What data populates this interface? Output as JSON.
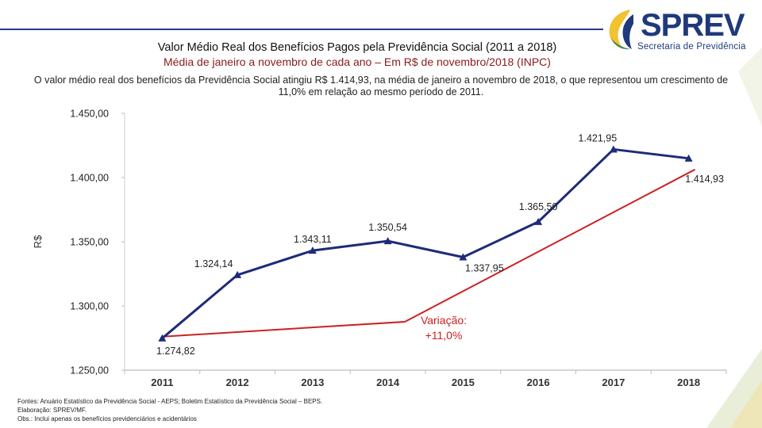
{
  "brand": {
    "name": "SPREV",
    "subtitle": "Secretaria de Previdência",
    "colors": {
      "navy": "#1f3a7a",
      "yellow": "#f2c230",
      "green": "#2e8b57"
    }
  },
  "header": {
    "title": "Valor Médio Real dos Benefícios Pagos pela Previdência Social (2011 a 2018)",
    "subtitle": "Média de janeiro a novembro de cada ano – Em R$ de novembro/2018 (INPC)",
    "description": "O valor médio real dos benefícios da Previdência Social atingiu R$ 1.414,93, na média de janeiro a novembro de 2018, o que representou um crescimento de 11,0% em relação ao mesmo período de 2011."
  },
  "chart_data": {
    "type": "line",
    "title": "Valor Médio Real dos Benefícios Pagos pela Previdência Social (2011 a 2018)",
    "xlabel": "",
    "ylabel": "R$",
    "categories": [
      "2011",
      "2012",
      "2013",
      "2014",
      "2015",
      "2016",
      "2017",
      "2018"
    ],
    "series": [
      {
        "name": "Valor médio real",
        "values": [
          1274.82,
          1324.14,
          1343.11,
          1350.54,
          1337.95,
          1365.5,
          1421.95,
          1414.93
        ],
        "labels": [
          "1.274,82",
          "1.324,14",
          "1.343,11",
          "1.350,54",
          "1.337,95",
          "1.365,50",
          "1.421,95",
          "1.414,93"
        ],
        "color": "#1f2a7a"
      }
    ],
    "ylim": [
      1250,
      1450
    ],
    "yticks": [
      1250,
      1300,
      1350,
      1400,
      1450
    ],
    "ytick_labels": [
      "1.250,00",
      "1.300,00",
      "1.350,00",
      "1.400,00",
      "1.450,00"
    ],
    "annotation": {
      "text_line1": "Variação:",
      "text_line2": "+11,0%",
      "color": "#cc2222",
      "from_category": "2011",
      "to_category": "2018"
    },
    "grid": false
  },
  "footnotes": [
    "Fontes: Anuário Estatístico da Previdência Social - AEPS; Boletim Estatístico da Previdência Social – BEPS.",
    "Elaboração: SPREV/MF.",
    "Obs.: Inclui apenas os benefícios previdenciários e acidentários"
  ]
}
